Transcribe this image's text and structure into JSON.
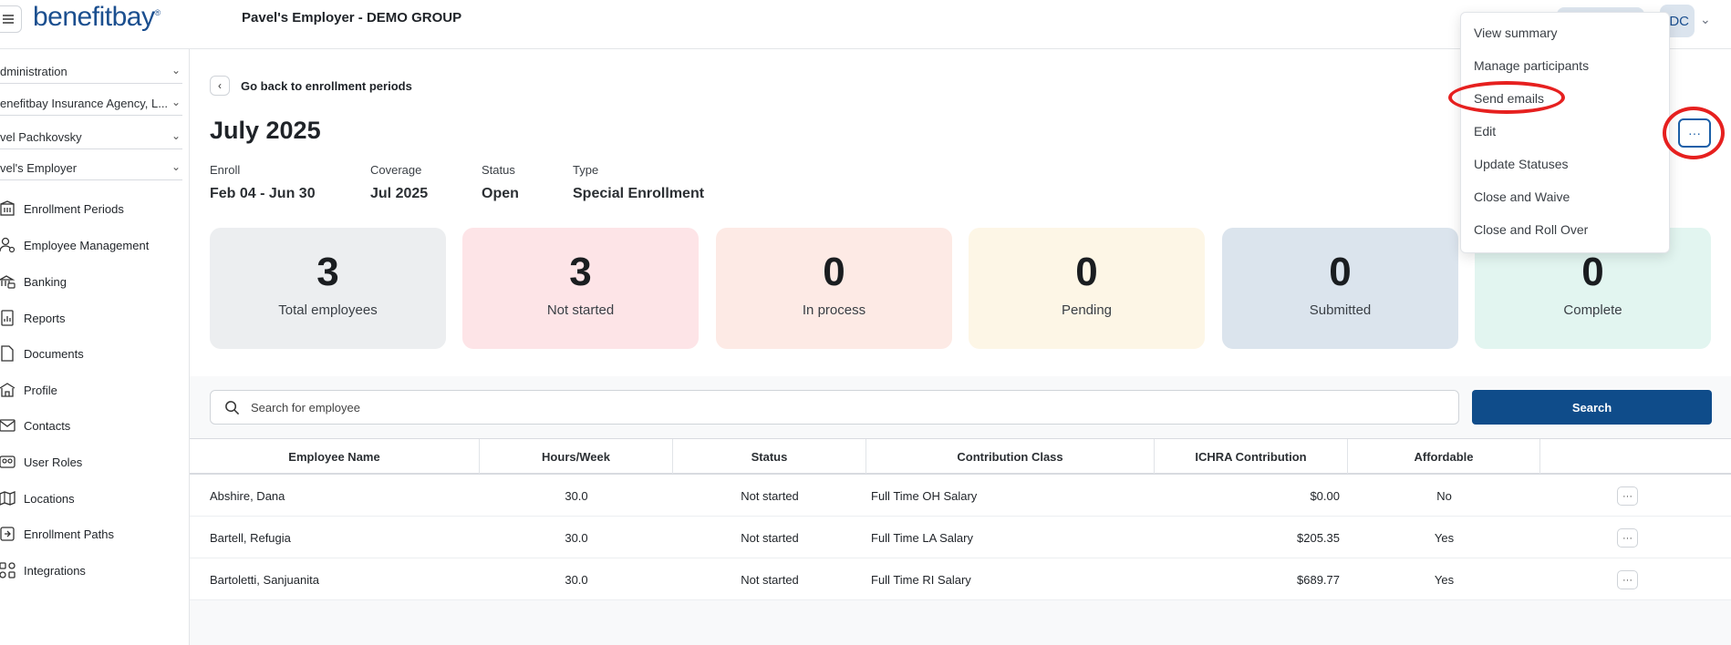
{
  "header": {
    "logo": "benefitbay",
    "logo_mark": "®",
    "employer_title": "Pavel's Employer - DEMO GROUP",
    "avatar_initials": "DC"
  },
  "sidebar": {
    "selects": [
      "dministration",
      "enefitbay Insurance Agency, L...",
      "vel Pachkovsky",
      "vel's Employer"
    ],
    "items": [
      {
        "label": "Enrollment Periods",
        "icon": "building-icon"
      },
      {
        "label": "Employee Management",
        "icon": "user-gear-icon"
      },
      {
        "label": "Banking",
        "icon": "bank-card-icon"
      },
      {
        "label": "Reports",
        "icon": "report-icon"
      },
      {
        "label": "Documents",
        "icon": "document-icon"
      },
      {
        "label": "Profile",
        "icon": "profile-building-icon"
      },
      {
        "label": "Contacts",
        "icon": "mail-icon"
      },
      {
        "label": "User Roles",
        "icon": "id-card-icon"
      },
      {
        "label": "Locations",
        "icon": "map-pin-icon"
      },
      {
        "label": "Enrollment Paths",
        "icon": "path-icon"
      },
      {
        "label": "Integrations",
        "icon": "integration-icon"
      }
    ]
  },
  "main": {
    "back_label": "Go back to enrollment periods",
    "title": "July 2025",
    "meta": [
      {
        "label": "Enroll",
        "value": "Feb 04 - Jun 30"
      },
      {
        "label": "Coverage",
        "value": "Jul 2025"
      },
      {
        "label": "Status",
        "value": "Open"
      },
      {
        "label": "Type",
        "value": "Special Enrollment"
      }
    ],
    "stats": [
      {
        "value": "3",
        "label": "Total employees",
        "color": "#eceef0"
      },
      {
        "value": "3",
        "label": "Not started",
        "color": "#fde4e7"
      },
      {
        "value": "0",
        "label": "In process",
        "color": "#fdeae5"
      },
      {
        "value": "0",
        "label": "Pending",
        "color": "#fdf6e6"
      },
      {
        "value": "0",
        "label": "Submitted",
        "color": "#dbe4ed"
      },
      {
        "value": "0",
        "label": "Complete",
        "color": "#e2f5f0"
      }
    ],
    "search_placeholder": "Search for employee",
    "search_button": "Search",
    "more_button": "···"
  },
  "table": {
    "columns": [
      "Employee Name",
      "Hours/Week",
      "Status",
      "Contribution Class",
      "ICHRA Contribution",
      "Affordable"
    ],
    "rows": [
      {
        "name": "Abshire, Dana",
        "hours": "30.0",
        "status": "Not started",
        "class": "Full Time OH Salary",
        "contribution": "$0.00",
        "affordable": "No"
      },
      {
        "name": "Bartell, Refugia",
        "hours": "30.0",
        "status": "Not started",
        "class": "Full Time LA Salary",
        "contribution": "$205.35",
        "affordable": "Yes"
      },
      {
        "name": "Bartoletti, Sanjuanita",
        "hours": "30.0",
        "status": "Not started",
        "class": "Full Time RI Salary",
        "contribution": "$689.77",
        "affordable": "Yes"
      }
    ],
    "row_action": "···"
  },
  "dropdown": {
    "items": [
      "View summary",
      "Manage participants",
      "Send emails",
      "Edit",
      "Update Statuses",
      "Close and Waive",
      "Close and Roll Over"
    ]
  },
  "colors": {
    "brand": "#1b4f8f",
    "primary_button": "#0f4c8a",
    "highlight": "#e6201f"
  }
}
